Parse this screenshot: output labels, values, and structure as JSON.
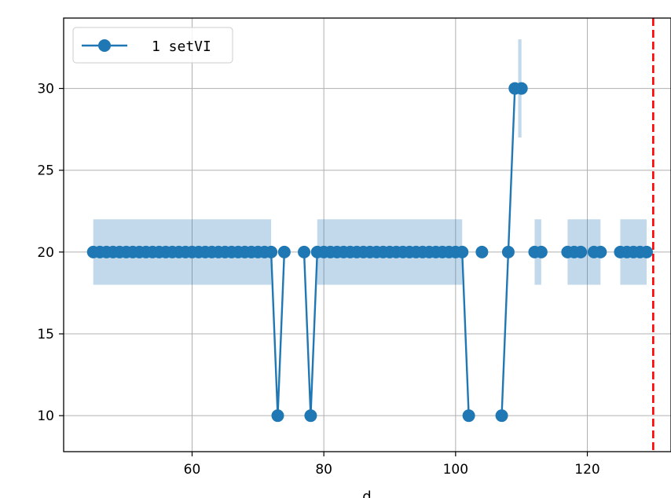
{
  "chart_data": {
    "type": "line",
    "xlabel": "d",
    "ylabel": "",
    "xlim": [
      40.5,
      132.7
    ],
    "ylim": [
      7.8,
      34.3
    ],
    "xticks": [
      60,
      80,
      100,
      120
    ],
    "yticks": [
      10,
      15,
      20,
      25,
      30
    ],
    "grid": true,
    "legend_position": "top-left",
    "vline": {
      "x": 130,
      "color": "#ff0000",
      "style": "dashed"
    },
    "colors": {
      "series": "#1f77b4",
      "band": "#1f77b4",
      "band_opacity": 0.28,
      "vline": "#ff0000"
    },
    "series": [
      {
        "name": "1 setVI",
        "points": [
          [
            45,
            20
          ],
          [
            46,
            20
          ],
          [
            47,
            20
          ],
          [
            48,
            20
          ],
          [
            49,
            20
          ],
          [
            50,
            20
          ],
          [
            51,
            20
          ],
          [
            52,
            20
          ],
          [
            53,
            20
          ],
          [
            54,
            20
          ],
          [
            55,
            20
          ],
          [
            56,
            20
          ],
          [
            57,
            20
          ],
          [
            58,
            20
          ],
          [
            59,
            20
          ],
          [
            60,
            20
          ],
          [
            61,
            20
          ],
          [
            62,
            20
          ],
          [
            63,
            20
          ],
          [
            64,
            20
          ],
          [
            65,
            20
          ],
          [
            66,
            20
          ],
          [
            67,
            20
          ],
          [
            68,
            20
          ],
          [
            69,
            20
          ],
          [
            70,
            20
          ],
          [
            71,
            20
          ],
          [
            72,
            20
          ],
          [
            73,
            10
          ],
          [
            74,
            20
          ],
          [
            77,
            20
          ],
          [
            78,
            10
          ],
          [
            79,
            20
          ],
          [
            80,
            20
          ],
          [
            81,
            20
          ],
          [
            82,
            20
          ],
          [
            83,
            20
          ],
          [
            84,
            20
          ],
          [
            85,
            20
          ],
          [
            86,
            20
          ],
          [
            87,
            20
          ],
          [
            88,
            20
          ],
          [
            89,
            20
          ],
          [
            90,
            20
          ],
          [
            91,
            20
          ],
          [
            92,
            20
          ],
          [
            93,
            20
          ],
          [
            94,
            20
          ],
          [
            95,
            20
          ],
          [
            96,
            20
          ],
          [
            97,
            20
          ],
          [
            98,
            20
          ],
          [
            99,
            20
          ],
          [
            100,
            20
          ],
          [
            101,
            20
          ],
          [
            102,
            10
          ],
          [
            104,
            20
          ],
          [
            107,
            10
          ],
          [
            108,
            20
          ],
          [
            109,
            30
          ],
          [
            110,
            30
          ],
          [
            112,
            20
          ],
          [
            113,
            20
          ],
          [
            117,
            20
          ],
          [
            118,
            20
          ],
          [
            119,
            20
          ],
          [
            121,
            20
          ],
          [
            122,
            20
          ],
          [
            125,
            20
          ],
          [
            126,
            20
          ],
          [
            127,
            20
          ],
          [
            128,
            20
          ],
          [
            129,
            20
          ]
        ],
        "line_segments": [
          [
            45,
            74
          ],
          [
            77,
            102
          ],
          [
            107,
            110
          ]
        ],
        "band_segments": [
          {
            "x": [
              45,
              72
            ],
            "lower": 18,
            "upper": 22
          },
          {
            "x": [
              79,
              101
            ],
            "lower": 18,
            "upper": 22
          },
          {
            "x": [
              109.5,
              110
            ],
            "lower": 27,
            "upper": 33
          },
          {
            "x": [
              112,
              113
            ],
            "lower": 18,
            "upper": 22
          },
          {
            "x": [
              117,
              122
            ],
            "lower": 18,
            "upper": 22
          },
          {
            "x": [
              125,
              129
            ],
            "lower": 18,
            "upper": 22
          }
        ]
      }
    ]
  }
}
